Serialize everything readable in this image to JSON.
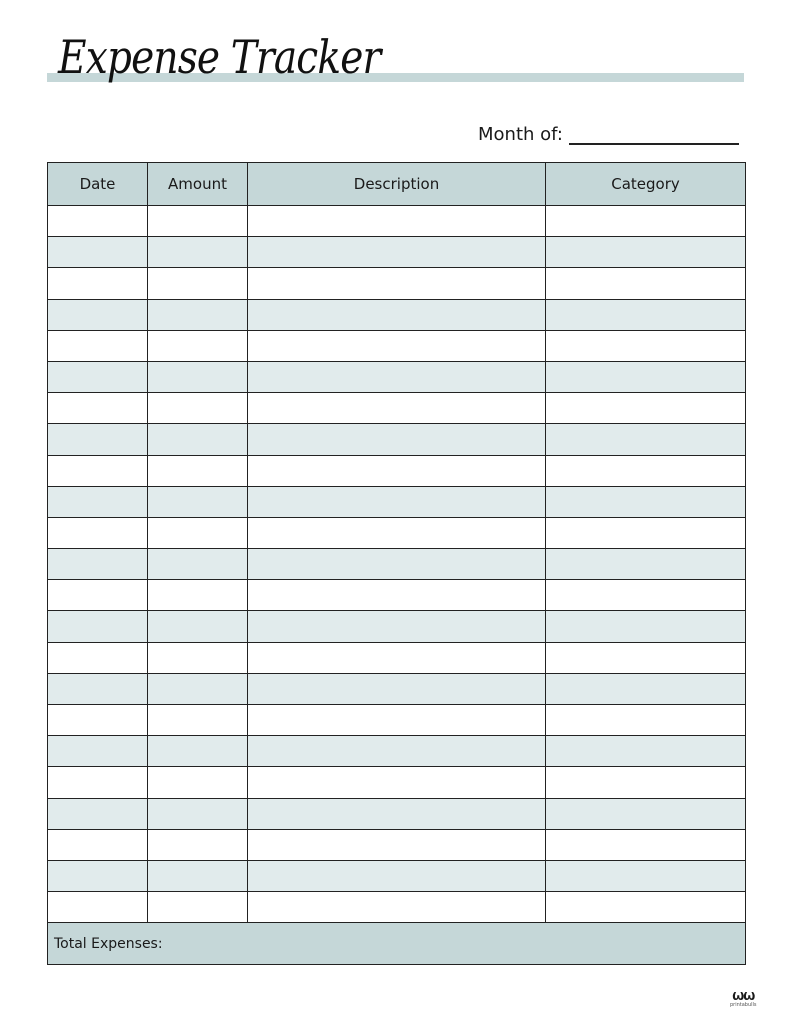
{
  "title": "Expense Tracker",
  "month_label": "Month of:",
  "columns": [
    "Date",
    "Amount",
    "Description",
    "Category"
  ],
  "total_label": "Total Expenses:",
  "logo_text": "printabulls",
  "colors": {
    "header": "#c5d7d8",
    "alt_row": "#e1ebec",
    "accent_bar": "#c5d7d8"
  }
}
